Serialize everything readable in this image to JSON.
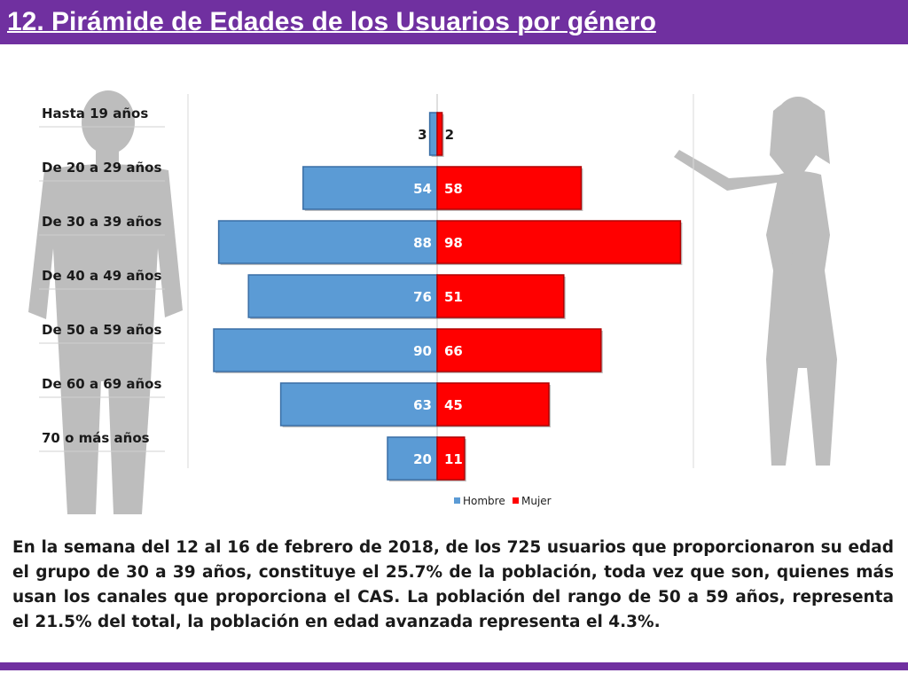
{
  "title": "12. Pirámide de Edades de los Usuarios por género",
  "chart_data": {
    "type": "bar",
    "orientation": "horizontal",
    "layout": "population-pyramid",
    "categories": [
      "Hasta 19 años",
      "De 20 a 29 años",
      "De 30 a 39 años",
      "De 40 a 49 años",
      "De 50 a 59 años",
      "De 60 a 69 años",
      "70 o más años"
    ],
    "series": [
      {
        "name": "Hombre",
        "color": "#5b9bd5",
        "values": [
          3,
          54,
          88,
          76,
          90,
          63,
          20
        ]
      },
      {
        "name": "Mujer",
        "color": "#ff0000",
        "values": [
          2,
          58,
          98,
          51,
          66,
          45,
          11
        ]
      }
    ],
    "legend": "bottom",
    "grid": false
  },
  "description": "En la semana del 12 al 16 de febrero de 2018, de los 725 usuarios que proporcionaron su edad el grupo de 30 a 39 años, constituye el 25.7% de la población, toda vez que son, quienes más usan los canales que proporciona el CAS. La población del rango de 50 a 59 años, representa el 21.5% del total, la población en edad avanzada representa el 4.3%."
}
